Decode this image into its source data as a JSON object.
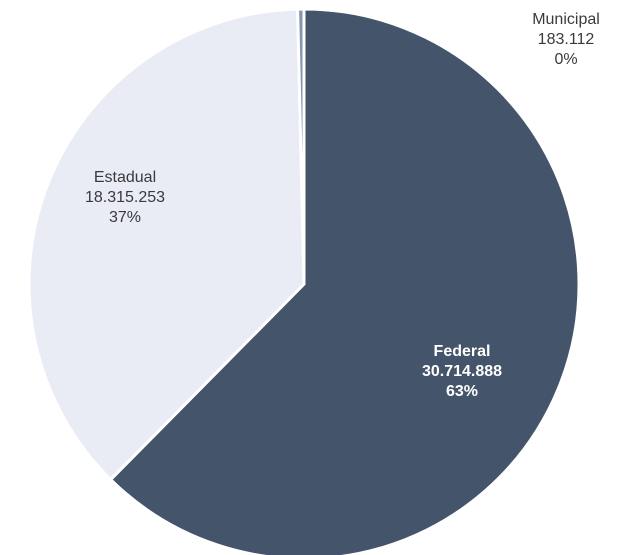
{
  "chart_data": {
    "type": "pie",
    "slices": [
      {
        "name": "Federal",
        "value": 30714888,
        "value_label": "30.714.888",
        "percent_label": "63%",
        "color": "#44546a"
      },
      {
        "name": "Estadual",
        "value": 18315253,
        "value_label": "18.315.253",
        "percent_label": "37%",
        "color": "#e9ebf5"
      },
      {
        "name": "Municipal",
        "value": 183112,
        "value_label": "183.112",
        "percent_label": "0%",
        "color": "#8496b0"
      }
    ],
    "start": "12 o'clock",
    "direction": "clockwise",
    "legend": "none"
  }
}
